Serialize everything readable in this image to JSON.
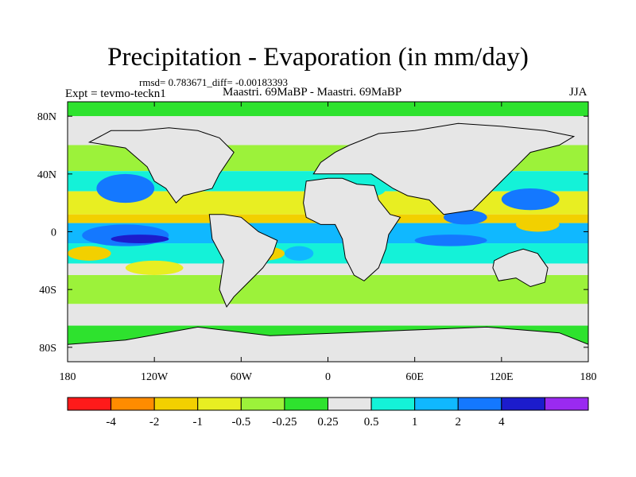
{
  "chart_data": {
    "type": "heatmap",
    "title": "Precipitation - Evaporation (in mm/day)",
    "stats": "rmsd= 0.783671_diff= -0.00183393",
    "left_label": "Expt = tevmo-teckn1",
    "center_label": "Maastri.  69MaBP - Maastri.  69MaBP",
    "right_label": "JJA",
    "x_range": [
      -180,
      180
    ],
    "y_range": [
      -90,
      90
    ],
    "x_ticks": [
      {
        "value": -180,
        "label": "180"
      },
      {
        "value": -120,
        "label": "120W"
      },
      {
        "value": -60,
        "label": "60W"
      },
      {
        "value": 0,
        "label": "0"
      },
      {
        "value": 60,
        "label": "60E"
      },
      {
        "value": 120,
        "label": "120E"
      },
      {
        "value": 180,
        "label": "180"
      }
    ],
    "y_ticks": [
      {
        "value": 80,
        "label": "80N"
      },
      {
        "value": 40,
        "label": "40N"
      },
      {
        "value": 0,
        "label": "0"
      },
      {
        "value": -40,
        "label": "40S"
      },
      {
        "value": -80,
        "label": "80S"
      }
    ],
    "colorbar": {
      "colors": [
        "#ff1a1a",
        "#ff8c00",
        "#f2d000",
        "#e8ee22",
        "#9cf23a",
        "#2ee22e",
        "#e6e6e6",
        "#14f2d8",
        "#10b8ff",
        "#1478ff",
        "#1c1ccc",
        "#9a2af0"
      ],
      "labels": [
        "-4",
        "-2",
        "-1",
        "-0.5",
        "-0.25",
        "0.25",
        "0.5",
        "1",
        "2",
        "4"
      ]
    },
    "bands": [
      {
        "lat": [
          80,
          90
        ],
        "value": 0.0
      },
      {
        "lat": [
          60,
          80
        ],
        "value": 0.3
      },
      {
        "lat": [
          42,
          60
        ],
        "value": -0.4
      },
      {
        "lat": [
          28,
          42
        ],
        "value": 0.7
      },
      {
        "lat": [
          12,
          28
        ],
        "value": -0.6
      },
      {
        "lat": [
          6,
          12
        ],
        "value": -1.5
      },
      {
        "lat": [
          -8,
          6
        ],
        "value": 1.2
      },
      {
        "lat": [
          -22,
          -8
        ],
        "value": 0.8
      },
      {
        "lat": [
          -30,
          -22
        ],
        "value": 0.4
      },
      {
        "lat": [
          -50,
          -30
        ],
        "value": -0.5
      },
      {
        "lat": [
          -65,
          -50
        ],
        "value": 0.3
      },
      {
        "lat": [
          -90,
          -65
        ],
        "value": 0.0
      }
    ],
    "patches": [
      {
        "lon": [
          -160,
          -120
        ],
        "lat": [
          20,
          40
        ],
        "value": 2.5
      },
      {
        "lon": [
          -170,
          -110
        ],
        "lat": [
          -10,
          5
        ],
        "value": 2.2
      },
      {
        "lon": [
          -150,
          -110
        ],
        "lat": [
          -8,
          -2
        ],
        "value": 4.5
      },
      {
        "lon": [
          -180,
          -150
        ],
        "lat": [
          -20,
          -10
        ],
        "value": -2.0
      },
      {
        "lon": [
          -140,
          -100
        ],
        "lat": [
          -30,
          -20
        ],
        "value": -0.6
      },
      {
        "lon": [
          -60,
          -30
        ],
        "lat": [
          -20,
          -10
        ],
        "value": -2.0
      },
      {
        "lon": [
          -30,
          -10
        ],
        "lat": [
          -20,
          -10
        ],
        "value": 1.5
      },
      {
        "lon": [
          80,
          110
        ],
        "lat": [
          5,
          15
        ],
        "value": 2.5
      },
      {
        "lon": [
          120,
          160
        ],
        "lat": [
          15,
          30
        ],
        "value": 2.5
      },
      {
        "lon": [
          130,
          160
        ],
        "lat": [
          0,
          10
        ],
        "value": -1.5
      },
      {
        "lon": [
          60,
          110
        ],
        "lat": [
          -10,
          -2
        ],
        "value": 2.0
      },
      {
        "lon": [
          25,
          40
        ],
        "lat": [
          25,
          35
        ],
        "value": 0.7
      }
    ],
    "land": [
      [
        [
          -165,
          62
        ],
        [
          -150,
          70
        ],
        [
          -130,
          70
        ],
        [
          -110,
          72
        ],
        [
          -90,
          70
        ],
        [
          -75,
          65
        ],
        [
          -65,
          55
        ],
        [
          -75,
          40
        ],
        [
          -80,
          30
        ],
        [
          -100,
          25
        ],
        [
          -105,
          20
        ],
        [
          -112,
          30
        ],
        [
          -120,
          35
        ],
        [
          -125,
          45
        ],
        [
          -140,
          58
        ],
        [
          -165,
          62
        ]
      ],
      [
        [
          -82,
          12
        ],
        [
          -72,
          12
        ],
        [
          -60,
          10
        ],
        [
          -48,
          0
        ],
        [
          -35,
          -6
        ],
        [
          -38,
          -15
        ],
        [
          -45,
          -25
        ],
        [
          -55,
          -35
        ],
        [
          -65,
          -45
        ],
        [
          -70,
          -52
        ],
        [
          -75,
          -40
        ],
        [
          -72,
          -20
        ],
        [
          -80,
          -5
        ],
        [
          -82,
          12
        ]
      ],
      [
        [
          -15,
          35
        ],
        [
          0,
          37
        ],
        [
          10,
          37
        ],
        [
          20,
          33
        ],
        [
          32,
          32
        ],
        [
          35,
          22
        ],
        [
          43,
          12
        ],
        [
          50,
          10
        ],
        [
          42,
          -2
        ],
        [
          40,
          -12
        ],
        [
          35,
          -25
        ],
        [
          25,
          -34
        ],
        [
          18,
          -30
        ],
        [
          12,
          -18
        ],
        [
          10,
          -5
        ],
        [
          5,
          5
        ],
        [
          -5,
          5
        ],
        [
          -15,
          10
        ],
        [
          -17,
          20
        ],
        [
          -15,
          35
        ]
      ],
      [
        [
          -10,
          40
        ],
        [
          -5,
          48
        ],
        [
          5,
          55
        ],
        [
          15,
          60
        ],
        [
          35,
          68
        ],
        [
          60,
          70
        ],
        [
          90,
          75
        ],
        [
          120,
          73
        ],
        [
          150,
          70
        ],
        [
          170,
          66
        ],
        [
          160,
          60
        ],
        [
          140,
          55
        ],
        [
          130,
          45
        ],
        [
          120,
          35
        ],
        [
          110,
          25
        ],
        [
          100,
          15
        ],
        [
          80,
          12
        ],
        [
          70,
          22
        ],
        [
          55,
          25
        ],
        [
          45,
          30
        ],
        [
          30,
          40
        ],
        [
          10,
          40
        ],
        [
          -10,
          40
        ]
      ],
      [
        [
          115,
          -20
        ],
        [
          125,
          -15
        ],
        [
          135,
          -12
        ],
        [
          145,
          -15
        ],
        [
          152,
          -25
        ],
        [
          150,
          -35
        ],
        [
          140,
          -38
        ],
        [
          130,
          -32
        ],
        [
          118,
          -34
        ],
        [
          114,
          -25
        ],
        [
          115,
          -20
        ]
      ],
      [
        [
          -90,
          -66
        ],
        [
          -40,
          -72
        ],
        [
          10,
          -70
        ],
        [
          60,
          -68
        ],
        [
          110,
          -66
        ],
        [
          160,
          -70
        ],
        [
          180,
          -78
        ],
        [
          180,
          -90
        ],
        [
          -180,
          -90
        ],
        [
          -180,
          -78
        ],
        [
          -140,
          -75
        ],
        [
          -90,
          -66
        ]
      ]
    ]
  }
}
